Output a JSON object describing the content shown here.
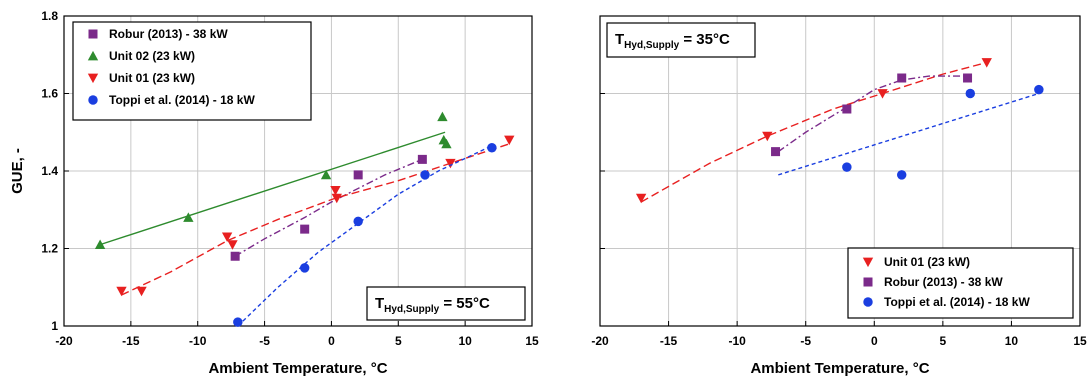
{
  "chart_data": [
    {
      "type": "scatter",
      "xlabel": "Ambient Temperature, °C",
      "ylabel": "GUE, -",
      "xlim": [
        -20,
        15
      ],
      "ylim": [
        1,
        1.8
      ],
      "xticks": [
        "-20",
        "-15",
        "-10",
        "-5",
        "0",
        "5",
        "10",
        "15"
      ],
      "yticks": [
        "1",
        "1.2",
        "1.4",
        "1.6",
        "1.8"
      ],
      "grid": true,
      "annotation": {
        "main": "T",
        "sub": "Hyd,Supply",
        "value": " = 55°C"
      },
      "legend_placement": "top-left",
      "series": [
        {
          "name": "Robur (2013) - 38 kW",
          "color": "#7b2a8a",
          "marker": "square",
          "x": [
            -7.2,
            2.0,
            6.8,
            -2.0
          ],
          "y": [
            1.18,
            1.39,
            1.43,
            1.25
          ],
          "fit_x": [
            -7.2,
            -5,
            -2,
            0,
            2,
            4,
            6.8
          ],
          "fit_y": [
            1.18,
            1.225,
            1.28,
            1.32,
            1.355,
            1.39,
            1.43
          ]
        },
        {
          "name": "Unit 02 (23 kW)",
          "color": "#2e8b2e",
          "marker": "triangle-up",
          "x": [
            -17.3,
            -10.7,
            -0.4,
            8.3,
            8.4,
            8.6
          ],
          "y": [
            1.21,
            1.28,
            1.39,
            1.54,
            1.48,
            1.47
          ],
          "fit_x": [
            -17.3,
            8.5
          ],
          "fit_y": [
            1.21,
            1.5
          ]
        },
        {
          "name": "Unit 01 (23 kW)",
          "color": "#e82020",
          "marker": "triangle-down",
          "x": [
            -15.7,
            -14.2,
            -7.8,
            -7.4,
            0.3,
            0.4,
            8.9,
            13.3
          ],
          "y": [
            1.09,
            1.09,
            1.23,
            1.21,
            1.35,
            1.33,
            1.42,
            1.48
          ],
          "fit_x": [
            -15.7,
            -12,
            -7.8,
            -4,
            0.3,
            5,
            8.9,
            13.3
          ],
          "fit_y": [
            1.08,
            1.14,
            1.22,
            1.275,
            1.33,
            1.375,
            1.42,
            1.47
          ]
        },
        {
          "name": "Toppi et al. (2014) - 18 kW",
          "color": "#1a3ee0",
          "marker": "circle",
          "x": [
            -7.0,
            -2.0,
            2.0,
            7.0,
            12.0
          ],
          "y": [
            1.01,
            1.15,
            1.27,
            1.39,
            1.46
          ],
          "fit_x": [
            -7.0,
            -4,
            -1,
            2,
            5,
            8,
            12
          ],
          "fit_y": [
            1.0,
            1.1,
            1.19,
            1.265,
            1.34,
            1.4,
            1.465
          ]
        }
      ]
    },
    {
      "type": "scatter",
      "xlabel": "Ambient Temperature, °C",
      "ylabel": "",
      "xlim": [
        -20,
        15
      ],
      "ylim": [
        1,
        1.8
      ],
      "xticks": [
        "-20",
        "-15",
        "-10",
        "-5",
        "0",
        "5",
        "10",
        "15"
      ],
      "yticks": [],
      "grid": true,
      "annotation": {
        "main": "T",
        "sub": "Hyd,Supply",
        "value": " = 35°C"
      },
      "legend_placement": "bottom-right",
      "series": [
        {
          "name": "Unit 01 (23 kW)",
          "color": "#e82020",
          "marker": "triangle-down",
          "x": [
            -17.0,
            -7.8,
            0.6,
            8.2
          ],
          "y": [
            1.33,
            1.49,
            1.6,
            1.68
          ],
          "fit_x": [
            -17.0,
            -12,
            -7.8,
            -3,
            0.6,
            5,
            8.2
          ],
          "fit_y": [
            1.32,
            1.42,
            1.49,
            1.56,
            1.6,
            1.65,
            1.68
          ]
        },
        {
          "name": "Robur (2013) - 38 kW",
          "color": "#7b2a8a",
          "marker": "square",
          "x": [
            -7.2,
            -2.0,
            2.0,
            6.8
          ],
          "y": [
            1.45,
            1.56,
            1.64,
            1.64
          ],
          "fit_x": [
            -7.0,
            -5,
            -2,
            0,
            2,
            4,
            6.8
          ],
          "fit_y": [
            1.45,
            1.5,
            1.565,
            1.61,
            1.635,
            1.645,
            1.645
          ]
        },
        {
          "name": "Toppi et al. (2014) - 18 kW",
          "color": "#1a3ee0",
          "marker": "circle",
          "x": [
            -2.0,
            2.0,
            7.0,
            12.0
          ],
          "y": [
            1.41,
            1.39,
            1.6,
            1.61
          ],
          "fit_x": [
            -7.0,
            12.0
          ],
          "fit_y": [
            1.39,
            1.6
          ]
        }
      ]
    }
  ]
}
